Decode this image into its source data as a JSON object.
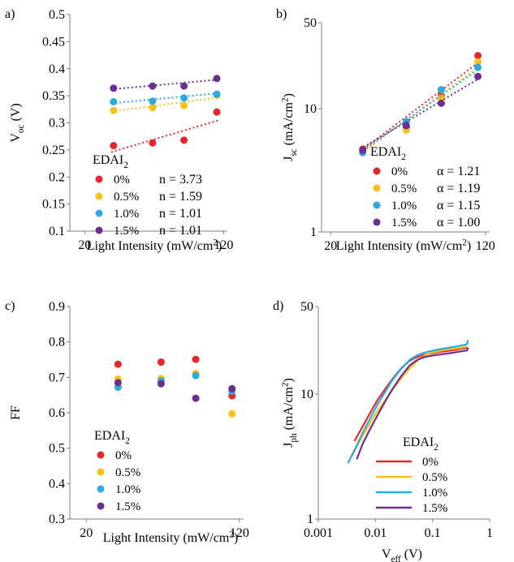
{
  "chart_data": [
    {
      "panel": "a)",
      "type": "scatter",
      "xscale": "log",
      "xlabel": "Light Intensity (mW/cm²)",
      "ylabel": "Voc (V)",
      "xticks": [
        "20",
        "120"
      ],
      "xtick_values": [
        20,
        120
      ],
      "yticks": [
        "0.1",
        "0.15",
        "0.2",
        "0.25",
        "0.3",
        "0.35",
        "0.4",
        "0.45",
        "0.5"
      ],
      "ylim": [
        0.1,
        0.5
      ],
      "legend_title": "EDAI₂",
      "legend_stat": "n",
      "trendlines": true,
      "x": [
        29,
        48,
        72,
        110
      ],
      "series": [
        {
          "name": "0%",
          "color": "#e8262a",
          "values": [
            0.258,
            0.263,
            0.268,
            0.32
          ],
          "stat_label": "n = 3.73",
          "trend": [
            0.246,
            0.305
          ]
        },
        {
          "name": "0.5%",
          "color": "#fbbf18",
          "values": [
            0.323,
            0.328,
            0.332,
            0.351
          ],
          "stat_label": "n = 1.59",
          "trend": [
            0.321,
            0.347
          ]
        },
        {
          "name": "1.0%",
          "color": "#2ba9e1",
          "values": [
            0.339,
            0.34,
            0.346,
            0.353
          ],
          "stat_label": "n = 1.01",
          "trend": [
            0.336,
            0.355
          ]
        },
        {
          "name": "1.5%",
          "color": "#6b2f90",
          "values": [
            0.364,
            0.368,
            0.368,
            0.382
          ],
          "stat_label": "n = 1.01",
          "trend": [
            0.362,
            0.38
          ]
        }
      ]
    },
    {
      "panel": "b)",
      "type": "scatter",
      "xscale": "log",
      "yscale": "log",
      "xlabel": "Light Intensity (mW/cm²)",
      "ylabel": "Jsc (mA/cm²)",
      "xticks": [
        "20",
        "120"
      ],
      "xtick_values": [
        20,
        120
      ],
      "yticks": [
        "1",
        "10",
        "50"
      ],
      "ytick_values": [
        1,
        10,
        50
      ],
      "ylim": [
        1,
        50
      ],
      "legend_title": "EDAI₂",
      "legend_stat": "α",
      "trendlines": true,
      "x": [
        29,
        48,
        72,
        110
      ],
      "series": [
        {
          "name": "0%",
          "color": "#e8262a",
          "values": [
            4.7,
            7.1,
            12.8,
            27.0
          ],
          "stat_label": "α = 1.21",
          "trend": [
            4.5,
            24.5
          ]
        },
        {
          "name": "0.5%",
          "color": "#fbbf18",
          "values": [
            4.5,
            6.7,
            12.2,
            24.0
          ],
          "stat_label": "α = 1.19",
          "trend": [
            4.3,
            22.5
          ]
        },
        {
          "name": "1.0%",
          "color": "#2ba9e1",
          "values": [
            4.4,
            7.9,
            14.3,
            21.7
          ],
          "stat_label": "α = 1.15",
          "trend": [
            4.4,
            21.5
          ]
        },
        {
          "name": "1.5%",
          "color": "#6b2f90",
          "values": [
            4.6,
            7.3,
            11.1,
            18.3
          ],
          "stat_label": "α = 1.00",
          "trend": [
            4.7,
            17.9
          ]
        }
      ]
    },
    {
      "panel": "c)",
      "type": "scatter",
      "xscale": "log",
      "xlabel": "Light Intensity (mW/cm²)",
      "ylabel": "FF",
      "xticks": [
        "20",
        "120"
      ],
      "xtick_values": [
        20,
        120
      ],
      "yticks": [
        "0.3",
        "0.4",
        "0.5",
        "0.6",
        "0.7",
        "0.8",
        "0.9"
      ],
      "ylim": [
        0.3,
        0.9
      ],
      "legend_title": "EDAI₂",
      "x": [
        29,
        48,
        72,
        110
      ],
      "series": [
        {
          "name": "0%",
          "color": "#e8262a",
          "values": [
            0.737,
            0.743,
            0.751,
            0.648
          ]
        },
        {
          "name": "0.5%",
          "color": "#fbbf18",
          "values": [
            0.695,
            0.697,
            0.711,
            0.597
          ]
        },
        {
          "name": "1.0%",
          "color": "#2ba9e1",
          "values": [
            0.672,
            0.69,
            0.705,
            0.661
          ]
        },
        {
          "name": "1.5%",
          "color": "#6b2f90",
          "values": [
            0.685,
            0.682,
            0.641,
            0.668
          ]
        }
      ]
    },
    {
      "panel": "d)",
      "type": "line",
      "xscale": "log",
      "yscale": "log",
      "xlabel": "Veff (V)",
      "ylabel": "Jph (mA/cm²)",
      "xticks": [
        "0.001",
        "0.01",
        "0.1",
        "1"
      ],
      "xtick_values": [
        0.001,
        0.01,
        0.1,
        1
      ],
      "yticks": [
        "1",
        "10",
        "50"
      ],
      "ytick_values": [
        1,
        10,
        50
      ],
      "ylim": [
        1,
        50
      ],
      "legend_title": "EDAI₂",
      "series": [
        {
          "name": "0%",
          "color": "#e8262a",
          "x": [
            0.0043,
            0.006,
            0.008,
            0.011,
            0.016,
            0.022,
            0.03,
            0.04,
            0.05,
            0.07,
            0.1,
            0.15,
            0.2,
            0.3,
            0.4
          ],
          "values": [
            4.2,
            5.5,
            7.0,
            9.0,
            11.5,
            14.0,
            16.5,
            18.5,
            19.5,
            20.5,
            21.2,
            21.8,
            22.2,
            22.8,
            23.5
          ]
        },
        {
          "name": "0.5%",
          "color": "#fbbf18",
          "x": [
            0.0039,
            0.005,
            0.007,
            0.01,
            0.015,
            0.022,
            0.03,
            0.04,
            0.055,
            0.075,
            0.1,
            0.15,
            0.2,
            0.3,
            0.4
          ],
          "values": [
            3.2,
            4.0,
            5.2,
            6.9,
            9.0,
            11.5,
            13.8,
            16.0,
            18.5,
            20.5,
            21.5,
            22.3,
            22.8,
            23.3,
            24.0
          ]
        },
        {
          "name": "1.0%",
          "color": "#2ba9e1",
          "x": [
            0.0033,
            0.0045,
            0.006,
            0.008,
            0.011,
            0.015,
            0.02,
            0.028,
            0.04,
            0.055,
            0.075,
            0.1,
            0.15,
            0.2,
            0.3,
            0.4,
            0.42
          ],
          "values": [
            2.8,
            3.7,
            4.9,
            6.3,
            8.3,
            10.5,
            13.0,
            15.8,
            18.8,
            20.5,
            21.5,
            22.2,
            23.0,
            23.5,
            24.2,
            25.0,
            27.0
          ]
        },
        {
          "name": "1.5%",
          "color": "#6b2f90",
          "x": [
            0.0047,
            0.006,
            0.008,
            0.011,
            0.015,
            0.02,
            0.028,
            0.04,
            0.055,
            0.075,
            0.1,
            0.15,
            0.2,
            0.3,
            0.4,
            0.42
          ],
          "values": [
            3.0,
            4.0,
            5.2,
            6.8,
            8.8,
            11.0,
            13.8,
            17.0,
            18.8,
            19.8,
            20.3,
            20.8,
            21.2,
            21.8,
            22.3,
            23.5
          ]
        }
      ]
    }
  ]
}
